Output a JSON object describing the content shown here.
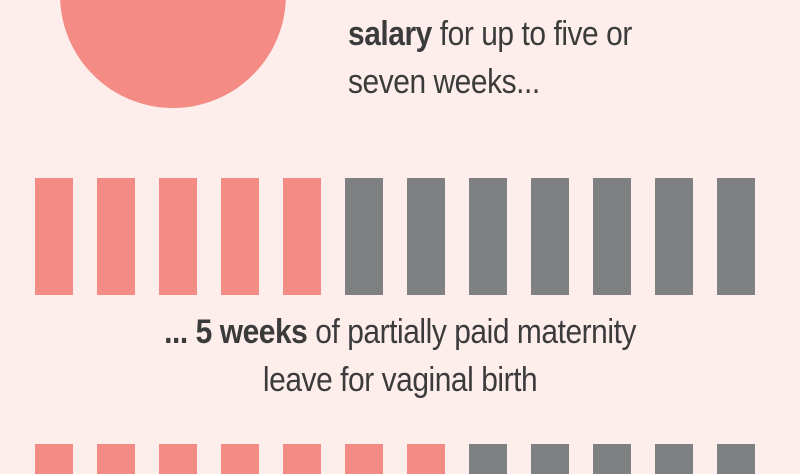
{
  "colors": {
    "background": "#fdeeeb",
    "accent": "#f48b84",
    "grey": "#7f8082",
    "text": "#3b3b3b"
  },
  "top_caption": {
    "bold": "salary",
    "line1_rest": " for up to five or",
    "line2": "seven weeks..."
  },
  "week_rows": [
    {
      "total_weeks": 12,
      "highlighted_weeks": 5
    },
    {
      "total_weeks": 12,
      "highlighted_weeks": 7
    }
  ],
  "middle_caption": {
    "prefix": "... ",
    "bold": "5 weeks",
    "line1_rest": " of partially paid maternity",
    "line2": "leave for vaginal birth"
  }
}
